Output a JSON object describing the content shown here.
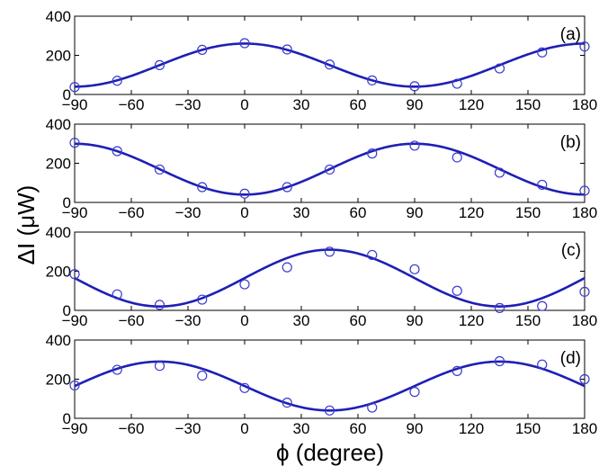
{
  "chart_data": [
    {
      "type": "scatter",
      "panel_label": "(a)",
      "xlim": [
        -90,
        180
      ],
      "ylim": [
        0,
        400
      ],
      "xticks": [
        -90,
        -60,
        -30,
        0,
        30,
        60,
        90,
        120,
        150,
        180
      ],
      "yticks": [
        0,
        200,
        400
      ],
      "fit_curve": {
        "mean": 150,
        "amplitude": 110,
        "phase_deg": 0
      },
      "series": [
        {
          "x": [
            -90,
            -67.5,
            -45,
            -22.5,
            0,
            22.5,
            45,
            67.5,
            90,
            112.5,
            135,
            157.5,
            180
          ],
          "y": [
            38,
            70,
            150,
            228,
            262,
            230,
            153,
            72,
            42,
            55,
            133,
            215,
            245
          ]
        }
      ]
    },
    {
      "type": "scatter",
      "panel_label": "(b)",
      "xlim": [
        -90,
        180
      ],
      "ylim": [
        0,
        400
      ],
      "xticks": [
        -90,
        -60,
        -30,
        0,
        30,
        60,
        90,
        120,
        150,
        180
      ],
      "yticks": [
        0,
        200,
        400
      ],
      "fit_curve": {
        "mean": 170,
        "amplitude": 130,
        "phase_deg": 90
      },
      "series": [
        {
          "x": [
            -90,
            -67.5,
            -45,
            -22.5,
            0,
            22.5,
            45,
            67.5,
            90,
            112.5,
            135,
            157.5,
            180
          ],
          "y": [
            305,
            262,
            168,
            78,
            45,
            78,
            168,
            250,
            290,
            230,
            152,
            90,
            60
          ]
        }
      ]
    },
    {
      "type": "scatter",
      "panel_label": "(c)",
      "xlim": [
        -90,
        180
      ],
      "ylim": [
        0,
        400
      ],
      "xticks": [
        -90,
        -60,
        -30,
        0,
        30,
        60,
        90,
        120,
        150,
        180
      ],
      "yticks": [
        0,
        200,
        400
      ],
      "fit_curve": {
        "mean": 165,
        "amplitude": 145,
        "phase_deg": 45
      },
      "series": [
        {
          "x": [
            -90,
            -67.5,
            -45,
            -22.5,
            0,
            22.5,
            45,
            67.5,
            90,
            112.5,
            135,
            157.5,
            180
          ],
          "y": [
            185,
            82,
            28,
            55,
            133,
            220,
            300,
            283,
            210,
            100,
            12,
            22,
            95
          ]
        }
      ]
    },
    {
      "type": "scatter",
      "panel_label": "(d)",
      "xlim": [
        -90,
        180
      ],
      "ylim": [
        0,
        400
      ],
      "xticks": [
        -90,
        -60,
        -30,
        0,
        30,
        60,
        90,
        120,
        150,
        180
      ],
      "yticks": [
        0,
        200,
        400
      ],
      "fit_curve": {
        "mean": 165,
        "amplitude": 125,
        "phase_deg": 135
      },
      "series": [
        {
          "x": [
            -90,
            -67.5,
            -45,
            -22.5,
            0,
            22.5,
            45,
            67.5,
            90,
            112.5,
            135,
            157.5,
            180
          ],
          "y": [
            168,
            248,
            268,
            218,
            155,
            80,
            40,
            55,
            135,
            242,
            292,
            275,
            200
          ]
        }
      ]
    }
  ],
  "axes": {
    "ylabel": "ΔI (μW)",
    "xlabel": "ϕ (degree)"
  },
  "colors": {
    "line": "#1f1fb4",
    "marker": "#3a3ad0",
    "axis": "#000000"
  }
}
